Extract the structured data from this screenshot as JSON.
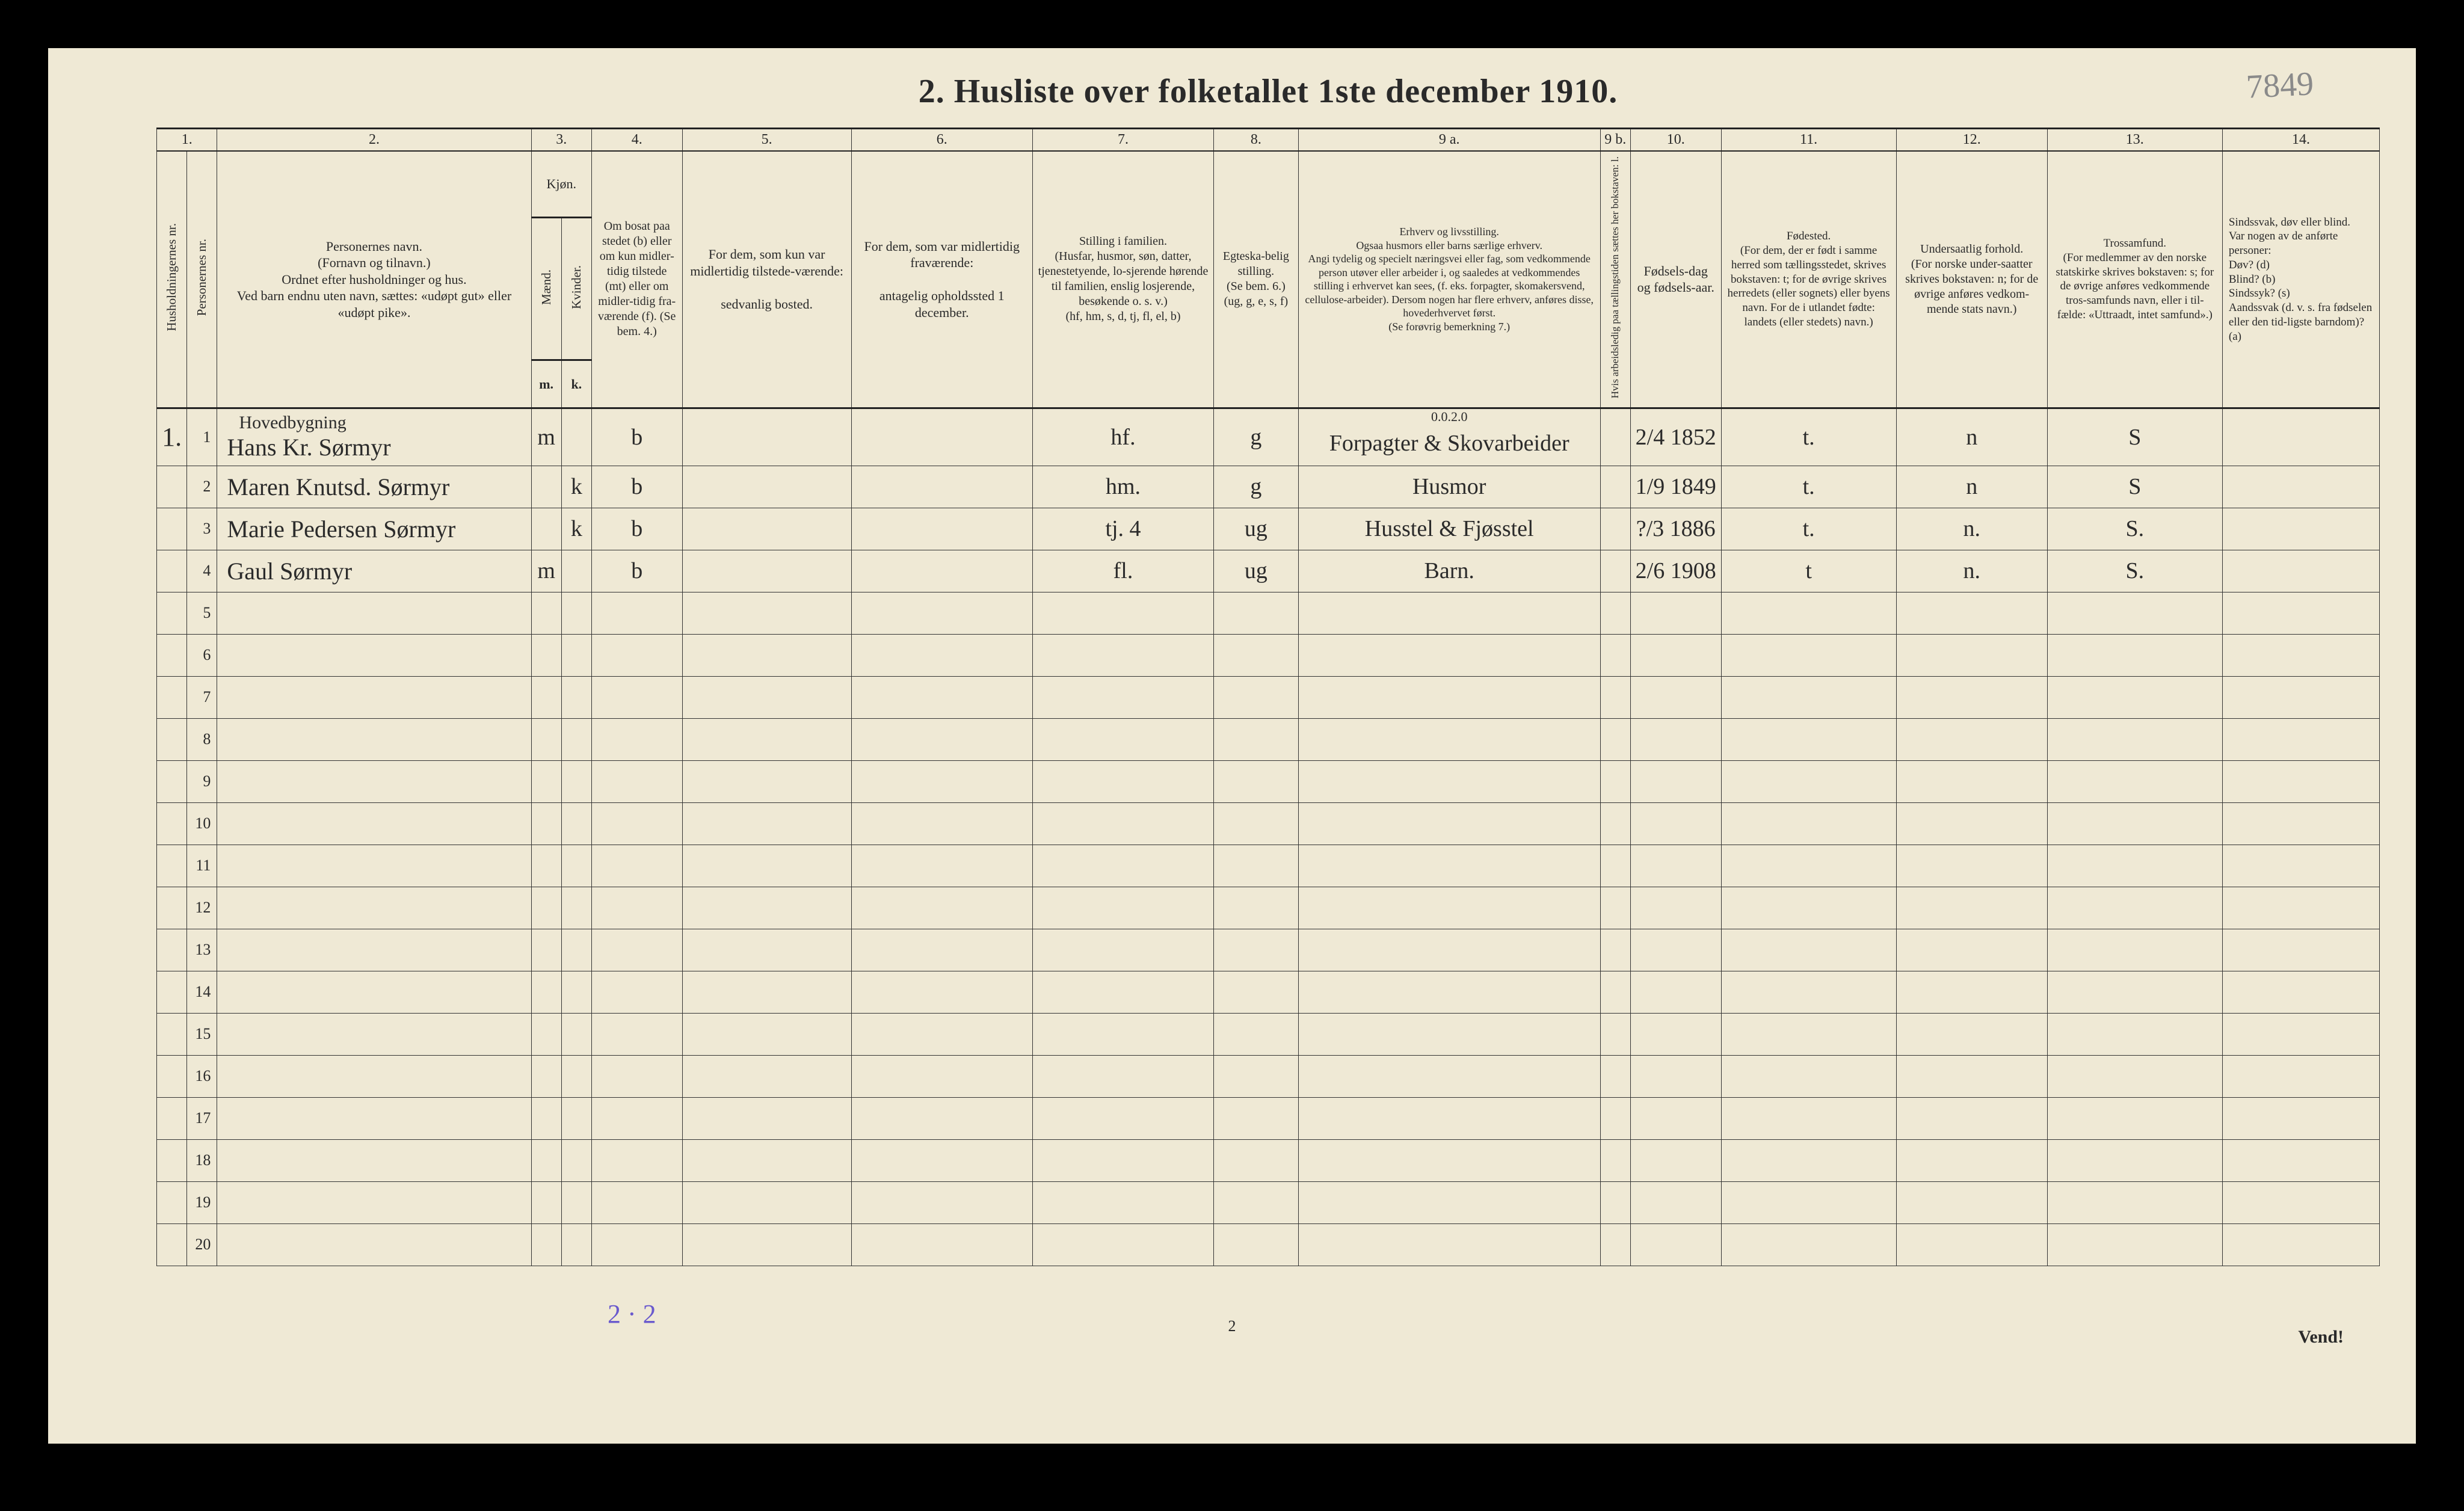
{
  "pencil_top_right": "7849",
  "title": "2.  Husliste over folketallet 1ste december 1910.",
  "col_numbers": [
    "1.",
    "2.",
    "3.",
    "4.",
    "5.",
    "6.",
    "7.",
    "8.",
    "9 a.",
    "9 b.",
    "10.",
    "11.",
    "12.",
    "13.",
    "14."
  ],
  "headers": {
    "h1a": "Husholdningernes nr.",
    "h1b": "Personernes nr.",
    "h2": "Personernes navn.\n(Fornavn og tilnavn.)\nOrdnet efter husholdninger og hus.\nVed barn endnu uten navn, sættes: «udøpt gut» eller «udøpt pike».",
    "h3": "Kjøn.",
    "h3m": "Mænd.",
    "h3k": "Kvinder.",
    "h3m2": "m.",
    "h3k2": "k.",
    "h4": "Om bosat paa stedet (b) eller om kun midler-tidig tilstede (mt) eller om midler-tidig fra-værende (f). (Se bem. 4.)",
    "h5": "For dem, som kun var midlertidig tilstede-værende:\n\nsedvanlig bosted.",
    "h6": "For dem, som var midlertidig fraværende:\n\nantagelig opholdssted 1 december.",
    "h7": "Stilling i familien.\n(Husfar, husmor, søn, datter, tjenestetyende, lo-sjerende hørende til familien, enslig losjerende, besøkende o. s. v.)\n(hf, hm, s, d, tj, fl, el, b)",
    "h8": "Egteska-belig stilling.\n(Se bem. 6.)\n(ug, g, e, s, f)",
    "h9a": "Erhverv og livsstilling.\nOgsaa husmors eller barns særlige erhverv.\nAngi tydelig og specielt næringsvei eller fag, som vedkommende person utøver eller arbeider i, og saaledes at vedkommendes stilling i erhvervet kan sees, (f. eks. forpagter, skomakersvend, cellulose-arbeider). Dersom nogen har flere erhverv, anføres disse, hovederhvervet først.\n(Se forøvrig bemerkning 7.)",
    "h9b": "Hvis arbeidsledig paa tællingstiden sættes her bokstaven: l.",
    "h10": "Fødsels-dag og fødsels-aar.",
    "h11": "Fødested.\n(For dem, der er født i samme herred som tællingsstedet, skrives bokstaven: t; for de øvrige skrives herredets (eller sognets) eller byens navn. For de i utlandet fødte: landets (eller stedets) navn.)",
    "h12": "Undersaatlig forhold.\n(For norske under-saatter skrives bokstaven: n; for de øvrige anføres vedkom-mende stats navn.)",
    "h13": "Trossamfund.\n(For medlemmer av den norske statskirke skrives bokstaven: s; for de øvrige anføres vedkommende tros-samfunds navn, eller i til-fælde: «Uttraadt, intet samfund».)",
    "h14": "Sindssvak, døv eller blind.\nVar nogen av de anførte personer:\nDøv?      (d)\nBlind?    (b)\nSindssyk? (s)\nAandssvak (d. v. s. fra fødselen eller den tid-ligste barndom)? (a)"
  },
  "household_label": "Hovedbygning",
  "overnote": "0.0.2.0",
  "rows": [
    {
      "hh": "1.",
      "n": "1",
      "name": "Hans Kr. Sørmyr",
      "m": "m",
      "k": "",
      "c4": "b",
      "c7": "hf.",
      "c8": "g",
      "c9a": "Forpagter & Skovarbeider",
      "c10": "2/4 1852",
      "c11": "t.",
      "c12": "n",
      "c13": "S"
    },
    {
      "hh": "",
      "n": "2",
      "name": "Maren Knutsd. Sørmyr",
      "m": "",
      "k": "k",
      "c4": "b",
      "c7": "hm.",
      "c8": "g",
      "c9a": "Husmor",
      "c10": "1/9 1849",
      "c11": "t.",
      "c12": "n",
      "c13": "S"
    },
    {
      "hh": "",
      "n": "3",
      "name": "Marie Pedersen Sørmyr",
      "m": "",
      "k": "k",
      "c4": "b",
      "c7": "tj.   4",
      "c8": "ug",
      "c9a": "Husstel & Fjøsstel",
      "c10": "?/3 1886",
      "c11": "t.",
      "c12": "n.",
      "c13": "S."
    },
    {
      "hh": "",
      "n": "4",
      "name": "Gaul        Sørmyr",
      "m": "m",
      "k": "",
      "c4": "b",
      "c7": "fl.",
      "c8": "ug",
      "c9a": "Barn.",
      "c10": "2/6 1908",
      "c11": "t",
      "c12": "n.",
      "c13": "S."
    },
    {
      "hh": "",
      "n": "5"
    },
    {
      "hh": "",
      "n": "6"
    },
    {
      "hh": "",
      "n": "7"
    },
    {
      "hh": "",
      "n": "8"
    },
    {
      "hh": "",
      "n": "9"
    },
    {
      "hh": "",
      "n": "10"
    },
    {
      "hh": "",
      "n": "11"
    },
    {
      "hh": "",
      "n": "12"
    },
    {
      "hh": "",
      "n": "13"
    },
    {
      "hh": "",
      "n": "14"
    },
    {
      "hh": "",
      "n": "15"
    },
    {
      "hh": "",
      "n": "16"
    },
    {
      "hh": "",
      "n": "17"
    },
    {
      "hh": "",
      "n": "18"
    },
    {
      "hh": "",
      "n": "19"
    },
    {
      "hh": "",
      "n": "20"
    }
  ],
  "foot_pencil": "2 · 2",
  "page_small": "2",
  "vend": "Vend!",
  "colors": {
    "paper": "#efe9d5",
    "ink": "#2a2a2a",
    "rule": "#333333",
    "pencil": "#8a8a8a",
    "blue_pencil": "#6a5acd"
  }
}
